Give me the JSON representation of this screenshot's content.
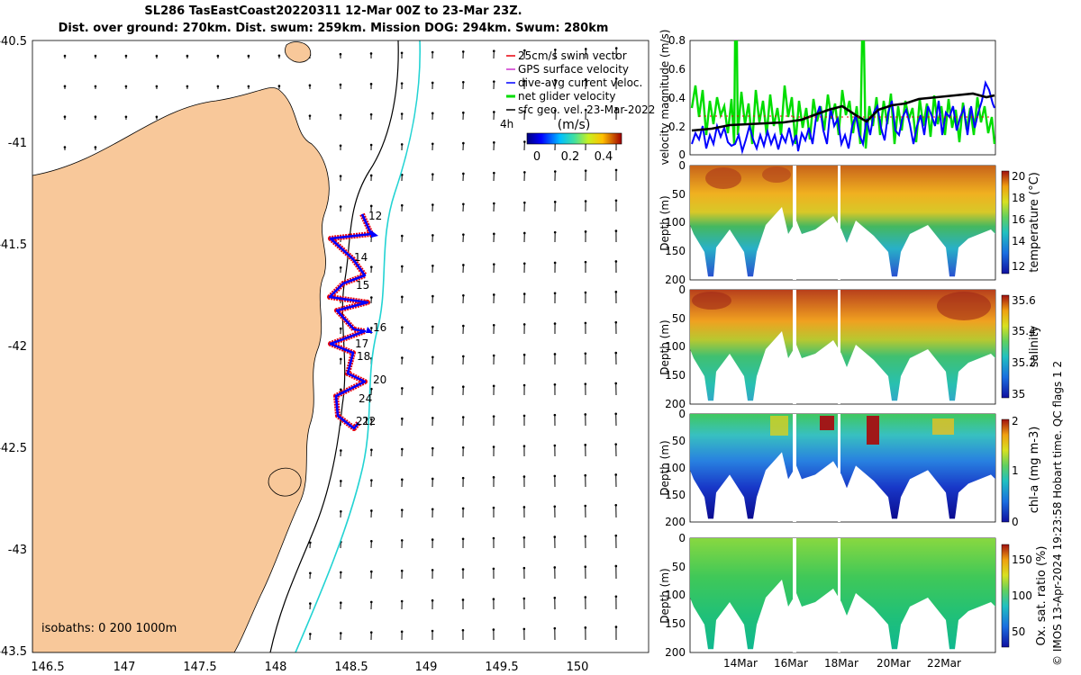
{
  "title": {
    "line1": "SL286 TasEastCoast20220311 12-Mar 00Z to 23-Mar 23Z.",
    "line2": "Dist. over ground: 270km. Dist. swum: 259km. Mission DOG: 294km. Swum: 280km"
  },
  "map": {
    "lat_ticks": [
      "-40.5",
      "-41",
      "-41.5",
      "-42",
      "-42.5",
      "-43",
      "-43.5"
    ],
    "lon_ticks": [
      "146.5",
      "147",
      "147.5",
      "148",
      "148.5",
      "149",
      "149.5",
      "150"
    ],
    "isobaths_label": "isobaths: 0   200  1000m",
    "track_day_labels": [
      "12",
      "14",
      "15",
      "16",
      "17",
      "18",
      "20",
      "24",
      "21",
      "22"
    ],
    "colors": {
      "land": "#f8c89a",
      "isobath_200": "#000000",
      "isobath_1000": "#22d3d3"
    }
  },
  "legend": {
    "items": [
      {
        "label": "25cm/s swim vector",
        "color": "#e8000b"
      },
      {
        "label": "GPS surface velocity",
        "color": "#cc33cc"
      },
      {
        "label": "dive-avg current veloc.",
        "color": "#0000ff"
      },
      {
        "label": "net glider velocity",
        "color": "#00dd00"
      },
      {
        "label": "sfc geo. vel. 23-Mar-2022",
        "color": "#000000"
      }
    ],
    "scale_label": "4h",
    "colorbar_title": "(m/s)",
    "colorbar_ticks": [
      "0",
      "0.2",
      "0.4"
    ]
  },
  "velocity_panel": {
    "ylabel": "velocity magnitude (m/s)",
    "yticks": [
      "0",
      "0.2",
      "0.4",
      "0.6",
      "0.8"
    ]
  },
  "sections": [
    {
      "name": "temperature",
      "cbar_label": "temperature (°C)",
      "cbar_ticks": [
        "12",
        "14",
        "16",
        "18",
        "20"
      ]
    },
    {
      "name": "salinity",
      "cbar_label": "salinity",
      "cbar_ticks": [
        "35",
        "35.2",
        "35.4",
        "35.6"
      ]
    },
    {
      "name": "chl-a",
      "cbar_label": "chl-a (mg m-3)",
      "cbar_ticks": [
        "0",
        "1",
        "2"
      ]
    },
    {
      "name": "oxygen",
      "cbar_label": "Ox. sat. ratio (%)",
      "cbar_ticks": [
        "50",
        "100",
        "150"
      ]
    }
  ],
  "depth_label": "Depth (m)",
  "depth_ticks": [
    "0",
    "50",
    "100",
    "150",
    "200"
  ],
  "xaxis_ticks": [
    "14Mar",
    "16Mar",
    "18Mar",
    "20Mar",
    "22Mar"
  ],
  "copyright": "© IMOS 13-Apr-2024 19:23:58 Hobart time. QC flags 1  2"
}
